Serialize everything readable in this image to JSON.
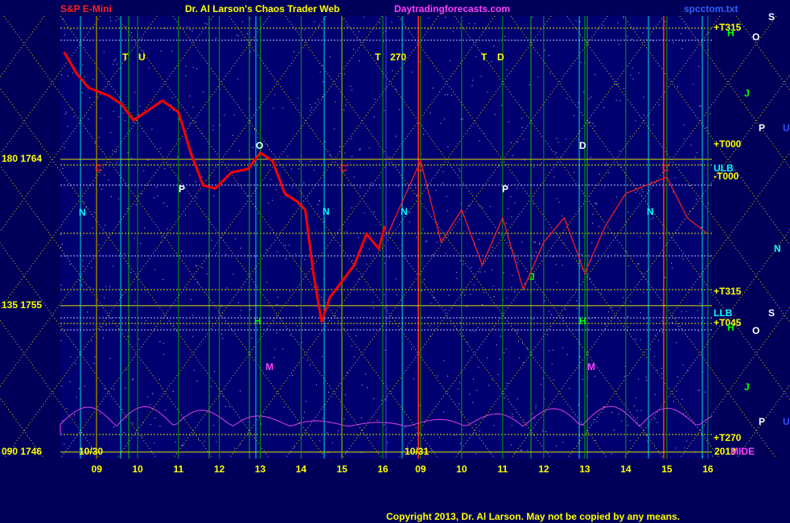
{
  "header": {
    "symbol": "S&P E-Mini",
    "site_title": "Dr. Al Larson's Chaos Trader Web",
    "url": "Daytradingforecasts.com",
    "file": "spcctom.txt"
  },
  "footer": "Copyright 2013, Dr. Al Larson. May not be copied by any means.",
  "annotations": [
    {
      "text": "10/30",
      "color": "#ffff00"
    },
    {
      "text": "10/31",
      "color": "#ffff00"
    },
    {
      "text": "2013",
      "color": "#ffff00"
    },
    {
      "text": "T",
      "color": "#ffff00"
    },
    {
      "text": "U",
      "color": "#ffff00"
    },
    {
      "text": "T",
      "color": "#ffff00"
    },
    {
      "text": "270",
      "color": "#ffff00"
    },
    {
      "text": "T",
      "color": "#ffff00"
    },
    {
      "text": "D",
      "color": "#ffff00"
    },
    {
      "text": "+T315",
      "color": "#ffff00"
    },
    {
      "text": "+T000",
      "color": "#ffff00"
    },
    {
      "text": "ULB",
      "color": "#00ffff"
    },
    {
      "text": "-T000",
      "color": "#ffff00"
    },
    {
      "text": "+T315",
      "color": "#ffff00"
    },
    {
      "text": "LLB",
      "color": "#00ffff"
    },
    {
      "text": "+T045",
      "color": "#ffff00"
    },
    {
      "text": "+T270",
      "color": "#ffff00"
    },
    {
      "text": "O",
      "color": "#ffffff"
    },
    {
      "text": "D",
      "color": "#ffffff"
    },
    {
      "text": "P",
      "color": "#ffffff"
    },
    {
      "text": "P",
      "color": "#ffffff"
    },
    {
      "text": "N",
      "color": "#00ffff"
    },
    {
      "text": "N",
      "color": "#00ffff"
    },
    {
      "text": "N",
      "color": "#00ffff"
    },
    {
      "text": "N",
      "color": "#00ffff"
    },
    {
      "text": "C",
      "color": "#ff2020"
    },
    {
      "text": "C",
      "color": "#ff2020"
    },
    {
      "text": "C",
      "color": "#ff2020"
    },
    {
      "text": "C",
      "color": "#ff2020"
    },
    {
      "text": "S",
      "color": "#ffffff"
    },
    {
      "text": "O",
      "color": "#ffffff"
    },
    {
      "text": "J",
      "color": "#00ff00"
    },
    {
      "text": "P",
      "color": "#ffffff"
    },
    {
      "text": "U",
      "color": "#3050ff"
    },
    {
      "text": "N",
      "color": "#00ffff"
    },
    {
      "text": "S",
      "color": "#ffffff"
    },
    {
      "text": "O",
      "color": "#ffffff"
    },
    {
      "text": "J",
      "color": "#00ff00"
    },
    {
      "text": "P",
      "color": "#ffffff"
    },
    {
      "text": "U",
      "color": "#3050ff"
    },
    {
      "text": "M",
      "color": "#ff40ff"
    },
    {
      "text": "M",
      "color": "#ff40ff"
    },
    {
      "text": "H",
      "color": "#00ff00"
    },
    {
      "text": "H",
      "color": "#00ff00"
    },
    {
      "text": "H",
      "color": "#00ff00"
    },
    {
      "text": "H",
      "color": "#00ff00"
    },
    {
      "text": "J",
      "color": "#00ff00"
    },
    {
      "text": "MIDE",
      "color": "#ff40ff"
    }
  ],
  "chart_data": [
    {
      "type": "line",
      "xlim": [
        8.11,
        16.08
      ],
      "ylim": [
        1745.6,
        1772.8
      ],
      "xticks": [
        {
          "value": 9,
          "label": "09"
        },
        10,
        11,
        12,
        13,
        14,
        15,
        16
      ],
      "yticks": [
        {
          "value": 1764,
          "label": "180 1764"
        },
        {
          "value": 1755,
          "label": "135 1755"
        },
        {
          "value": 1746,
          "label": "090 1746"
        }
      ],
      "grid": true,
      "x": [
        8.2,
        8.5,
        8.8,
        9.3,
        9.6,
        9.9,
        10.2,
        10.6,
        11.0,
        11.3,
        11.6,
        11.9,
        12.3,
        12.7,
        13.0,
        13.3,
        13.6,
        13.9,
        14.1,
        14.3,
        14.5,
        14.7,
        15.0,
        15.3,
        15.6,
        15.9,
        16.05
      ],
      "series": [
        {
          "color": "#ff0000",
          "values": [
            1770.6,
            1769.3,
            1768.4,
            1767.9,
            1767.4,
            1766.4,
            1766.9,
            1767.6,
            1766.9,
            1764.4,
            1762.4,
            1762.2,
            1763.2,
            1763.4,
            1764.4,
            1763.9,
            1761.9,
            1761.4,
            1760.9,
            1757.0,
            1754.0,
            1755.5,
            1756.5,
            1757.5,
            1759.4,
            1758.5,
            1759.9
          ]
        }
      ]
    },
    {
      "type": "line",
      "xlim": [
        8.16,
        16.1
      ],
      "ylim": [
        1745.6,
        1772.8
      ],
      "xticks": [
        {
          "value": 9,
          "label": "09"
        },
        10,
        11,
        12,
        13,
        14,
        15,
        16
      ],
      "x": [
        8.2,
        9.0,
        9.5,
        10.0,
        10.5,
        11.0,
        11.5,
        12.0,
        12.5,
        13.0,
        13.5,
        14.0,
        14.5,
        15.0,
        15.5,
        16.0
      ],
      "series": [
        {
          "color": "#ff2020",
          "values": [
            1759.4,
            1763.9,
            1758.9,
            1760.9,
            1757.5,
            1760.4,
            1756.0,
            1758.9,
            1760.4,
            1757.0,
            1759.9,
            1761.9,
            1762.4,
            1762.9,
            1760.4,
            1759.4
          ]
        }
      ]
    }
  ]
}
